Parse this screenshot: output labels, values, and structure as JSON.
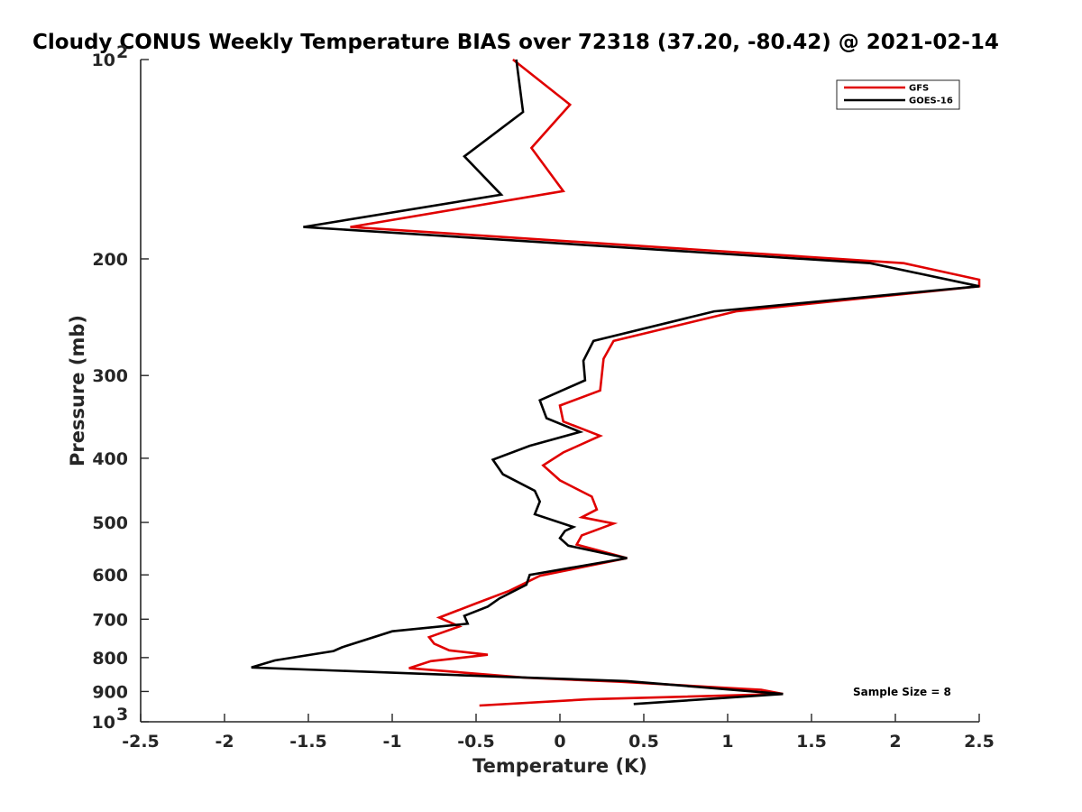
{
  "chart_data": {
    "type": "line",
    "title": "Cloudy CONUS Weekly Temperature BIAS over 72318 (37.20, -80.42) @ 2021-02-14",
    "xlabel": "Temperature (K)",
    "ylabel": "Pressure (mb)",
    "xlim": [
      -2.5,
      2.5
    ],
    "ylim": [
      100,
      1000
    ],
    "yscale": "log",
    "yreversed": true,
    "x_ticks": [
      "-2.5",
      "-2",
      "-1.5",
      "-1",
      "-0.5",
      "0",
      "0.5",
      "1",
      "1.5",
      "2",
      "2.5"
    ],
    "y_ticks": [
      {
        "value": 100,
        "label": "10",
        "exp": "2"
      },
      {
        "value": 200,
        "label": "200",
        "exp": ""
      },
      {
        "value": 300,
        "label": "300",
        "exp": ""
      },
      {
        "value": 400,
        "label": "400",
        "exp": ""
      },
      {
        "value": 500,
        "label": "500",
        "exp": ""
      },
      {
        "value": 600,
        "label": "600",
        "exp": ""
      },
      {
        "value": 700,
        "label": "700",
        "exp": ""
      },
      {
        "value": 800,
        "label": "800",
        "exp": ""
      },
      {
        "value": 900,
        "label": "900",
        "exp": ""
      },
      {
        "value": 1000,
        "label": "10",
        "exp": "3"
      }
    ],
    "legend_position": "top-right",
    "series": [
      {
        "name": "GFS",
        "color": "#e00000",
        "points": [
          [
            -0.28,
            100
          ],
          [
            0.06,
            117
          ],
          [
            -0.17,
            136
          ],
          [
            0.02,
            158
          ],
          [
            -1.25,
            179
          ],
          [
            2.05,
            203
          ],
          [
            2.5,
            215
          ],
          [
            2.5,
            220
          ],
          [
            1.05,
            240
          ],
          [
            0.32,
            266
          ],
          [
            0.26,
            283
          ],
          [
            0.24,
            316
          ],
          [
            0.0,
            333
          ],
          [
            0.02,
            352
          ],
          [
            0.24,
            370
          ],
          [
            0.02,
            392
          ],
          [
            -0.1,
            410
          ],
          [
            0.0,
            432
          ],
          [
            0.19,
            457
          ],
          [
            0.22,
            478
          ],
          [
            0.13,
            491
          ],
          [
            0.32,
            502
          ],
          [
            0.13,
            523
          ],
          [
            0.1,
            540
          ],
          [
            0.4,
            566
          ],
          [
            -0.12,
            602
          ],
          [
            -0.3,
            634
          ],
          [
            -0.51,
            664
          ],
          [
            -0.72,
            696
          ],
          [
            -0.6,
            718
          ],
          [
            -0.78,
            745
          ],
          [
            -0.75,
            762
          ],
          [
            -0.66,
            780
          ],
          [
            -0.43,
            792
          ],
          [
            -0.77,
            810
          ],
          [
            -0.9,
            830
          ],
          [
            -0.2,
            858
          ],
          [
            0.35,
            870
          ],
          [
            1.2,
            895
          ],
          [
            1.33,
            908
          ],
          [
            0.17,
            925
          ],
          [
            -0.48,
            945
          ]
        ]
      },
      {
        "name": "GOES-16",
        "color": "#000000",
        "points": [
          [
            -0.26,
            100
          ],
          [
            -0.22,
            120
          ],
          [
            -0.57,
            140
          ],
          [
            -0.35,
            160
          ],
          [
            -1.53,
            179
          ],
          [
            1.85,
            203
          ],
          [
            2.5,
            220
          ],
          [
            0.92,
            240
          ],
          [
            0.2,
            266
          ],
          [
            0.14,
            285
          ],
          [
            0.15,
            305
          ],
          [
            -0.12,
            327
          ],
          [
            -0.08,
            348
          ],
          [
            0.12,
            365
          ],
          [
            -0.18,
            383
          ],
          [
            -0.4,
            402
          ],
          [
            -0.34,
            423
          ],
          [
            -0.15,
            448
          ],
          [
            -0.12,
            465
          ],
          [
            -0.15,
            486
          ],
          [
            0.08,
            508
          ],
          [
            0.03,
            515
          ],
          [
            0.0,
            528
          ],
          [
            0.05,
            542
          ],
          [
            0.4,
            566
          ],
          [
            -0.18,
            600
          ],
          [
            -0.2,
            621
          ],
          [
            -0.36,
            651
          ],
          [
            -0.43,
            670
          ],
          [
            -0.57,
            692
          ],
          [
            -0.55,
            711
          ],
          [
            -1.0,
            730
          ],
          [
            -1.3,
            772
          ],
          [
            -1.35,
            782
          ],
          [
            -1.7,
            808
          ],
          [
            -1.84,
            828
          ],
          [
            -0.35,
            855
          ],
          [
            0.4,
            868
          ],
          [
            1.33,
            908
          ],
          [
            0.44,
            940
          ]
        ]
      }
    ],
    "annotation": "Sample Size = 8"
  }
}
